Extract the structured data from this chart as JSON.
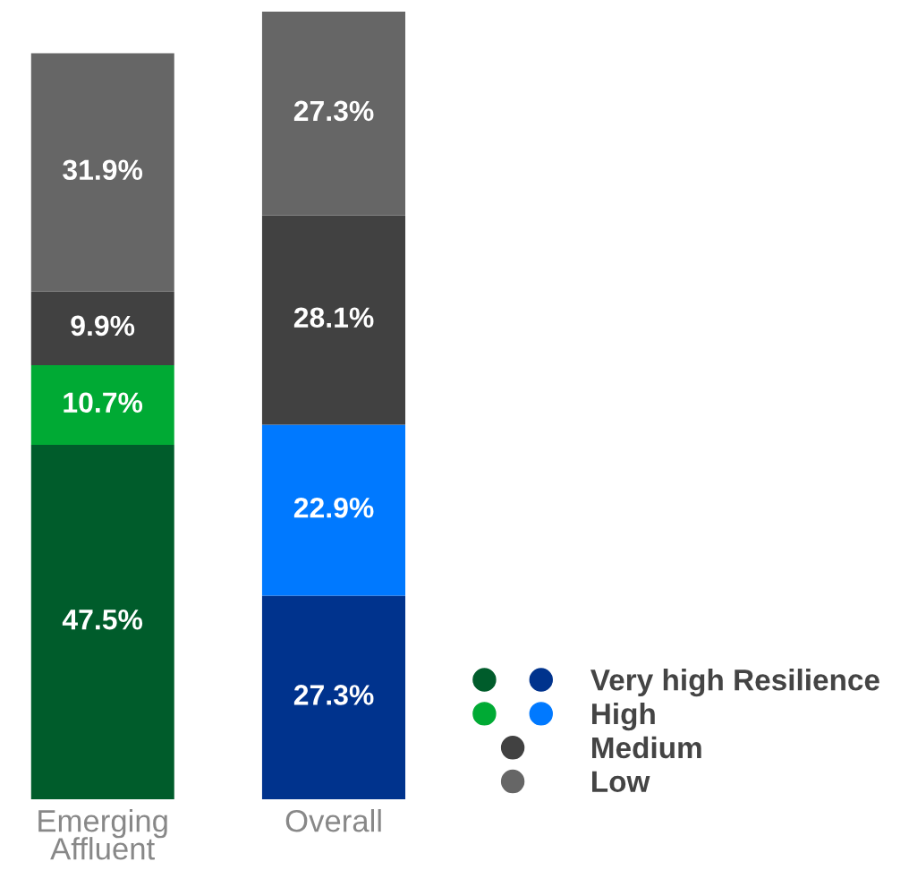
{
  "chart_data": {
    "type": "bar",
    "stacked": true,
    "legend": "bottom right",
    "categories": [
      "Emerging Affluent",
      "Overall"
    ],
    "series": [
      {
        "name": "Very high Resilience",
        "colors": [
          "#005c2b",
          "#00338d"
        ],
        "values": [
          47.5,
          27.3
        ],
        "value_labels": [
          "47.5%",
          "27.3%"
        ]
      },
      {
        "name": "High",
        "colors": [
          "#00aa34",
          "#0079ff"
        ],
        "values": [
          10.7,
          22.9
        ],
        "value_labels": [
          "10.7%",
          "22.9%"
        ]
      },
      {
        "name": "Medium",
        "colors": [
          "#414141",
          "#414141"
        ],
        "values": [
          9.9,
          28.1
        ],
        "value_labels": [
          "9.9%",
          "28.1%"
        ]
      },
      {
        "name": "Low",
        "colors": [
          "#666666",
          "#666666"
        ],
        "values": [
          31.9,
          27.3
        ],
        "value_labels": [
          "31.9%",
          "27.3%"
        ]
      }
    ]
  }
}
